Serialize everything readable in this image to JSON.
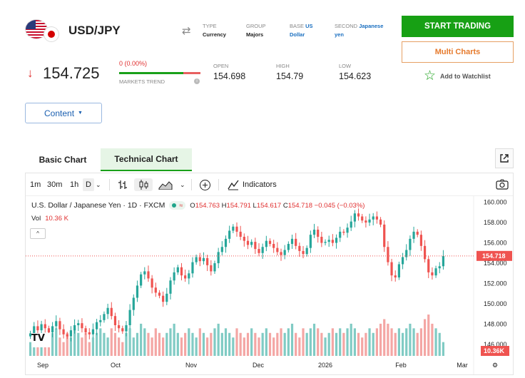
{
  "header": {
    "pair": "USD/JPY",
    "type_label": "TYPE",
    "type_value": "Currency",
    "group_label": "GROUP",
    "group_value": "Majors",
    "base_label": "BASE",
    "base_value_1": "US",
    "base_value_2": "Dollar",
    "second_label": "SECOND",
    "second_value_1": "Japanese",
    "second_value_2": "yen",
    "start_trading": "START TRADING",
    "multi_charts": "Multi Charts",
    "watchlist": "Add to Watchlist"
  },
  "quote": {
    "price": "154.725",
    "change": "0 (0.00%)",
    "trend_label": "MARKETS TREND",
    "trend_info": "i",
    "open_label": "OPEN",
    "open_value": "154.698",
    "high_label": "HIGH",
    "high_value": "154.79",
    "low_label": "LOW",
    "low_value": "154.623",
    "trend_up_fraction": 0.79
  },
  "content_button": "Content",
  "tabs": {
    "basic": "Basic Chart",
    "technical": "Technical Chart"
  },
  "toolbar": {
    "tf_1m": "1m",
    "tf_30m": "30m",
    "tf_1h": "1h",
    "tf_d": "D",
    "indicators": "Indicators"
  },
  "legend": {
    "title": "U.S. Dollar / Japanese Yen · 1D · FXCM",
    "o_label": "O",
    "o_value": "154.763",
    "h_label": "H",
    "h_value": "154.791",
    "l_label": "L",
    "l_value": "154.617",
    "c_label": "C",
    "c_value": "154.718",
    "change": "−0.045 (−0.03%)",
    "vol_label": "Vol",
    "vol_value": "10.36 K",
    "logo": "TV"
  },
  "colors": {
    "up": "#26a69a",
    "down": "#ef5350",
    "up_vol": "#80cbc4",
    "down_vol": "#f4a6a4",
    "brand_green": "#17a014",
    "accent_orange": "#e67a2c"
  },
  "chart_data": {
    "type": "candlestick",
    "title": "U.S. Dollar / Japanese Yen · 1D · FXCM",
    "y_ticks": [
      "160.000",
      "158.000",
      "156.000",
      "154.000",
      "152.000",
      "150.000",
      "148.000",
      "146.000"
    ],
    "ylim": [
      144.6,
      160.6
    ],
    "x_ticks": [
      "Sep",
      "Oct",
      "Nov",
      "Dec",
      "2026",
      "Feb",
      "Mar"
    ],
    "last_price_tag": "154.718",
    "last_volume_tag": "10.36K",
    "closes": [
      147.1,
      147.8,
      147.4,
      148.0,
      147.6,
      147.2,
      147.8,
      148.3,
      147.5,
      147.0,
      146.8,
      147.4,
      147.9,
      148.1,
      147.6,
      147.2,
      147.0,
      147.5,
      148.2,
      148.4,
      149.0,
      149.6,
      148.8,
      147.9,
      147.6,
      147.3,
      147.9,
      149.4,
      150.6,
      151.8,
      152.9,
      153.2,
      152.5,
      151.6,
      151.1,
      150.8,
      150.2,
      151.0,
      152.3,
      153.1,
      153.6,
      152.8,
      152.5,
      153.0,
      154.1,
      154.6,
      154.2,
      154.5,
      153.8,
      153.2,
      154.0,
      155.1,
      155.6,
      156.4,
      157.2,
      157.6,
      157.1,
      156.6,
      156.2,
      155.8,
      156.1,
      155.4,
      155.0,
      155.6,
      156.2,
      155.9,
      155.5,
      155.1,
      154.8,
      155.3,
      155.9,
      156.4,
      155.7,
      155.2,
      154.9,
      155.5,
      156.8,
      157.3,
      156.6,
      156.0,
      156.1,
      156.3,
      156.0,
      156.5,
      157.1,
      157.0,
      157.5,
      158.1,
      158.9,
      158.6,
      158.2,
      158.0,
      158.3,
      158.6,
      158.3,
      157.8,
      155.6,
      154.1,
      152.8,
      152.6,
      153.9,
      154.6,
      155.3,
      156.4,
      157.1,
      156.8,
      155.7,
      154.4,
      153.1,
      152.8,
      153.5,
      153.7,
      154.718
    ],
    "volumes": [
      3,
      4,
      3,
      4,
      5,
      4,
      5,
      6,
      4,
      3,
      5,
      4,
      6,
      5,
      4,
      5,
      3,
      4,
      5,
      6,
      5,
      4,
      6,
      5,
      4,
      3,
      5,
      6,
      4,
      5,
      7,
      6,
      5,
      4,
      6,
      5,
      4,
      5,
      6,
      7,
      5,
      4,
      5,
      6,
      5,
      4,
      6,
      5,
      4,
      5,
      6,
      7,
      5,
      6,
      5,
      4,
      6,
      5,
      4,
      5,
      6,
      5,
      4,
      5,
      6,
      5,
      4,
      5,
      6,
      5,
      6,
      7,
      5,
      4,
      6,
      5,
      6,
      7,
      6,
      5,
      4,
      5,
      6,
      5,
      6,
      5,
      6,
      7,
      6,
      5,
      4,
      5,
      6,
      5,
      6,
      7,
      8,
      7,
      6,
      5,
      6,
      5,
      6,
      7,
      6,
      5,
      6,
      8,
      9,
      7,
      6,
      5,
      3
    ]
  }
}
